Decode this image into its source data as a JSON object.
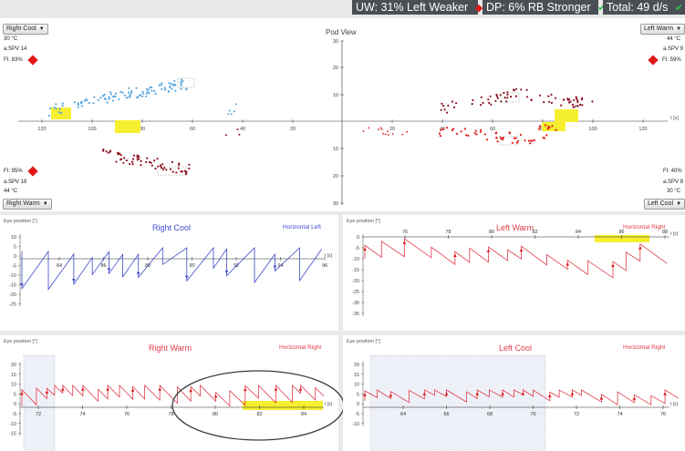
{
  "badges": {
    "uw": "UW: 31% Left Weaker",
    "dp": "DP: 6% RB Stronger",
    "total": "Total: 49 d/s"
  },
  "pod_view": {
    "title": "Pod View",
    "t_label": "t [s]",
    "right_cool": {
      "dropdown": "Right Cool",
      "temp": "30 °C",
      "spv": "a.SPV 14",
      "fi": "FI: 83%"
    },
    "left_warm": {
      "dropdown": "Left Warm",
      "temp": "44 °C",
      "spv": "a.SPV 9",
      "fi": "FI: 59%"
    },
    "right_warm": {
      "dropdown": "Right Warm",
      "temp": "44 °C",
      "spv": "a.SPV 18",
      "fi": "FI: 95%"
    },
    "left_cool": {
      "dropdown": "Left Cool",
      "temp": "30 °C",
      "spv": "a.SPV 8",
      "fi": "FI: 40%"
    },
    "x_ticks": [
      "120",
      "100",
      "80",
      "60",
      "40",
      "20",
      "20",
      "40",
      "60",
      "80",
      "100",
      "120"
    ],
    "y_ticks": [
      "30",
      "20",
      "10",
      "10",
      "20",
      "30"
    ]
  },
  "panels": {
    "right_cool": {
      "title": "Right Cool",
      "direction": "Horizontal Left",
      "ylabel": "Eye position [°]",
      "y_ticks": [
        "10",
        "5",
        "0",
        "-5",
        "-10",
        "-15",
        "-20",
        "-25"
      ],
      "x_ticks": [
        "84",
        "86",
        "88",
        "90",
        "92",
        "94",
        "96"
      ],
      "t_label": "t [s]"
    },
    "left_warm": {
      "title": "Left Warm",
      "direction": "Horizontal Right",
      "ylabel": "Eye position [°]",
      "y_ticks": [
        "0",
        "-5",
        "-10",
        "-15",
        "-20",
        "-25",
        "-30",
        "-35"
      ],
      "x_ticks": [
        "76",
        "78",
        "80",
        "82",
        "84",
        "86",
        "88"
      ],
      "t_label": "t [s]"
    },
    "right_warm": {
      "title": "Right Warm",
      "direction": "Horizontal Right",
      "ylabel": "Eye position [°]",
      "y_ticks": [
        "20",
        "15",
        "10",
        "5",
        "0",
        "-5",
        "-10",
        "-15"
      ],
      "x_ticks": [
        "72",
        "74",
        "76",
        "78",
        "80",
        "82",
        "84"
      ],
      "t_label": "t [s]"
    },
    "left_cool": {
      "title": "Left Cool",
      "direction": "Horizontal Right",
      "ylabel": "Eye position [°]",
      "y_ticks": [
        "20",
        "15",
        "10",
        "5",
        "0",
        "-5",
        "-10"
      ],
      "x_ticks": [
        "64",
        "66",
        "68",
        "70",
        "72",
        "74",
        "76"
      ],
      "t_label": "t [s]"
    }
  },
  "colors": {
    "badge_bg": "#4a4f55",
    "cool_blue": "#3b49c8",
    "cool_pod_blue": "#5aa8e0",
    "warm_red": "#e23b4a",
    "dark_red": "#8b1020",
    "highlight": "#f5ef30",
    "alert_red": "#e01818",
    "ok_green": "#2fc24a"
  }
}
